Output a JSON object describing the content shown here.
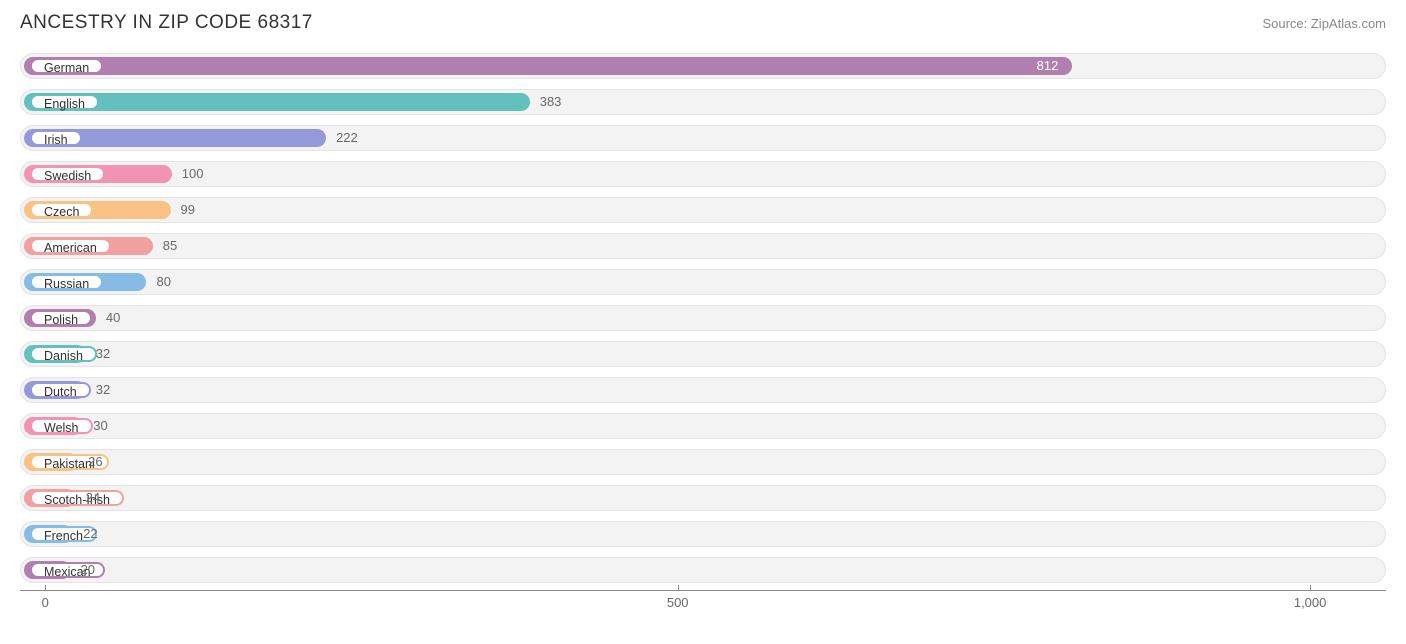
{
  "title": "ANCESTRY IN ZIP CODE 68317",
  "source": "Source: ZipAtlas.com",
  "chart": {
    "type": "bar",
    "xlim": [
      -20,
      1060
    ],
    "ticks": [
      0,
      500,
      1000
    ],
    "tick_labels": [
      "0",
      "500",
      "1,000"
    ],
    "track_bg": "#f3f3f3",
    "track_border": "#e3e3e3",
    "value_color": "#696969",
    "axis_color": "#888888",
    "background_color": "#ffffff",
    "title_color": "#333333",
    "source_color": "#888888",
    "title_fontsize": 19,
    "label_fontsize": 12.5,
    "value_fontsize": 13,
    "bars": [
      {
        "label": "German",
        "value": 812,
        "color": "#b07fb0",
        "value_inbar": true,
        "value_text_color": "#ffffff"
      },
      {
        "label": "English",
        "value": 383,
        "color": "#63c1bd",
        "value_inbar": false,
        "value_text_color": "#696969"
      },
      {
        "label": "Irish",
        "value": 222,
        "color": "#9399d9",
        "value_inbar": false,
        "value_text_color": "#696969"
      },
      {
        "label": "Swedish",
        "value": 100,
        "color": "#f293b5",
        "value_inbar": false,
        "value_text_color": "#696969"
      },
      {
        "label": "Czech",
        "value": 99,
        "color": "#f8c283",
        "value_inbar": false,
        "value_text_color": "#696969"
      },
      {
        "label": "American",
        "value": 85,
        "color": "#f2a1a0",
        "value_inbar": false,
        "value_text_color": "#696969"
      },
      {
        "label": "Russian",
        "value": 80,
        "color": "#85bbe4",
        "value_inbar": false,
        "value_text_color": "#696969"
      },
      {
        "label": "Polish",
        "value": 40,
        "color": "#b07fb0",
        "value_inbar": false,
        "value_text_color": "#696969"
      },
      {
        "label": "Danish",
        "value": 32,
        "color": "#63c1bd",
        "value_inbar": false,
        "value_text_color": "#696969"
      },
      {
        "label": "Dutch",
        "value": 32,
        "color": "#9399d9",
        "value_inbar": false,
        "value_text_color": "#696969"
      },
      {
        "label": "Welsh",
        "value": 30,
        "color": "#f293b5",
        "value_inbar": false,
        "value_text_color": "#696969"
      },
      {
        "label": "Pakistani",
        "value": 26,
        "color": "#f8c283",
        "value_inbar": false,
        "value_text_color": "#696969"
      },
      {
        "label": "Scotch-Irish",
        "value": 24,
        "color": "#f2a1a0",
        "value_inbar": false,
        "value_text_color": "#696969"
      },
      {
        "label": "French",
        "value": 22,
        "color": "#85bbe4",
        "value_inbar": false,
        "value_text_color": "#696969"
      },
      {
        "label": "Mexican",
        "value": 20,
        "color": "#b07fb0",
        "value_inbar": false,
        "value_text_color": "#696969"
      }
    ]
  }
}
